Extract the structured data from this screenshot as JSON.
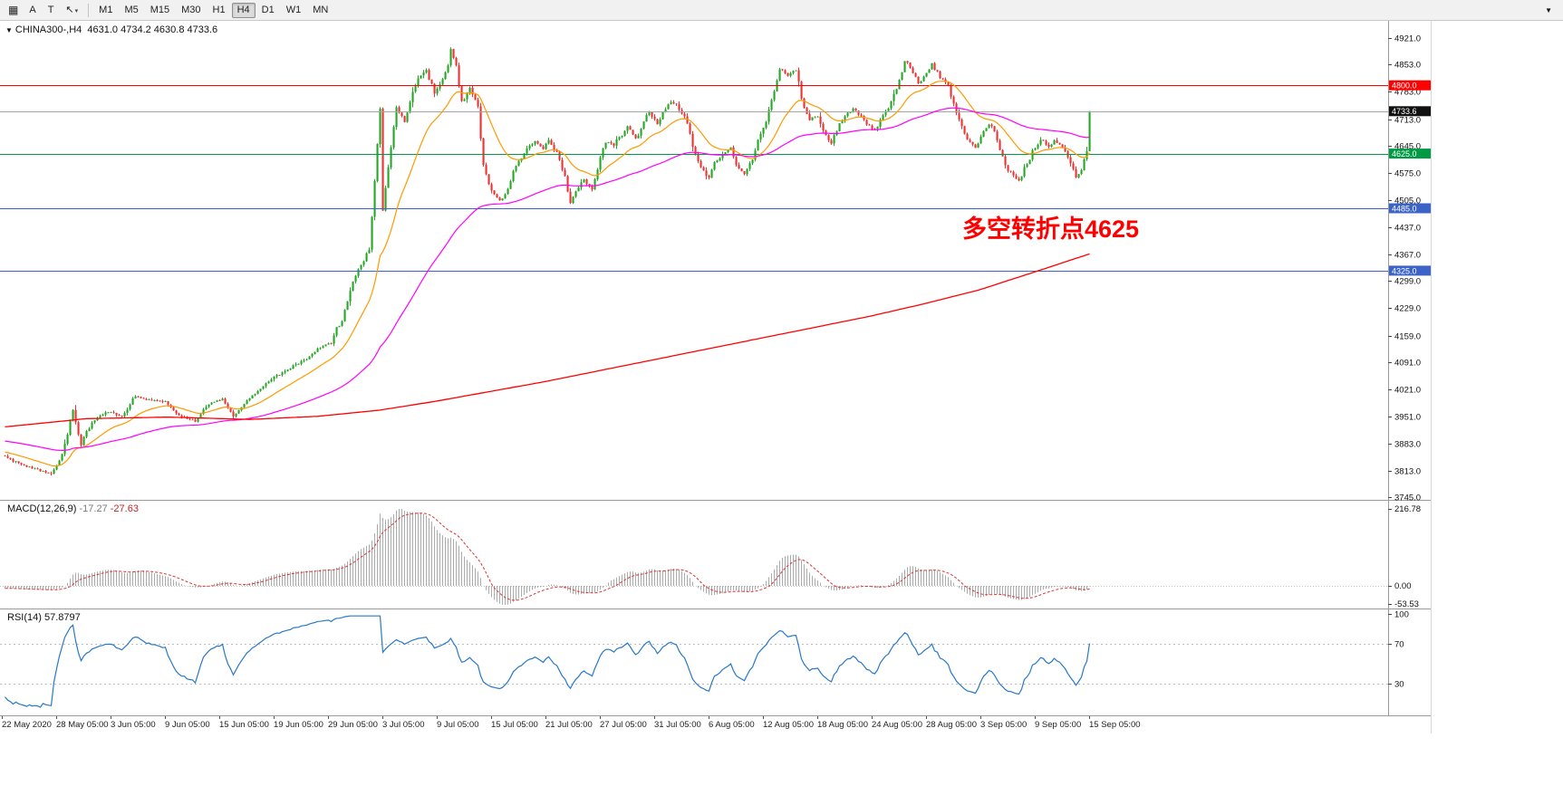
{
  "toolbar": {
    "grid_icon": "▦",
    "tool_a": "A",
    "tool_t": "T",
    "cursor_icon": "↖",
    "cursor_caret": "▾",
    "overflow_icon": "▼",
    "timeframes": [
      {
        "label": "M1",
        "active": false
      },
      {
        "label": "M5",
        "active": false
      },
      {
        "label": "M15",
        "active": false
      },
      {
        "label": "M30",
        "active": false
      },
      {
        "label": "H1",
        "active": false
      },
      {
        "label": "H4",
        "active": true
      },
      {
        "label": "D1",
        "active": false
      },
      {
        "label": "W1",
        "active": false
      },
      {
        "label": "MN",
        "active": false
      }
    ]
  },
  "chart": {
    "header_marker": "▼",
    "symbol_text": "CHINA300-,H4",
    "ohlc_text": "4631.0 4734.2 4630.8 4733.6",
    "macd_label": "MACD(12,26,9)",
    "macd_value_main": "-17.27",
    "macd_value_signal": "-27.63",
    "rsi_label": "RSI(14)",
    "rsi_value": "57.8797",
    "annotation_text": "多空转折点4625",
    "annotation_color": "#FF0000"
  },
  "chart_data": {
    "type": "candlestick",
    "symbol": "CHINA300-",
    "timeframe": "H4",
    "ohlc": {
      "open": 4631.0,
      "high": 4734.2,
      "low": 4630.8,
      "close": 4733.6
    },
    "y_range": [
      3745.0,
      4921.0
    ],
    "bars_visible": 400,
    "candle_colors": {
      "bull": "#26A626",
      "bear": "#EC3232"
    },
    "y_ticks": [
      "4921.0",
      "4853.0",
      "4783.0",
      "4713.0",
      "4645.0",
      "4575.0",
      "4505.0",
      "4437.0",
      "4367.0",
      "4299.0",
      "4229.0",
      "4159.0",
      "4091.0",
      "4021.0",
      "3951.0",
      "3883.0",
      "3813.0",
      "3745.0"
    ],
    "x_labels": [
      "22 May 2020",
      "28 May 05:00",
      "3 Jun 05:00",
      "9 Jun 05:00",
      "15 Jun 05:00",
      "19 Jun 05:00",
      "29 Jun 05:00",
      "3 Jul 05:00",
      "9 Jul 05:00",
      "15 Jul 05:00",
      "21 Jul 05:00",
      "27 Jul 05:00",
      "31 Jul 05:00",
      "6 Aug 05:00",
      "12 Aug 05:00",
      "18 Aug 05:00",
      "24 Aug 05:00",
      "28 Aug 05:00",
      "3 Sep 05:00",
      "9 Sep 05:00",
      "15 Sep 05:00"
    ],
    "levels": [
      {
        "value": 4800.0,
        "color": "#FF0000",
        "kind": "resistance"
      },
      {
        "value": 4733.6,
        "color": "#A6A6A6",
        "kind": "bid"
      },
      {
        "value": 4625.0,
        "color": "#009A44",
        "kind": "pivot"
      },
      {
        "value": 4485.0,
        "color": "#3C64C8",
        "kind": "support"
      },
      {
        "value": 4325.0,
        "color": "#3C64C8",
        "kind": "support"
      }
    ],
    "price_tags": [
      {
        "text": "4800.0",
        "value": 4800.0,
        "bg": "#FF0000"
      },
      {
        "text": "4733.6",
        "value": 4733.6,
        "bg": "#111111"
      },
      {
        "text": "4625.0",
        "value": 4625.0,
        "bg": "#009A44"
      },
      {
        "text": "4485.0",
        "value": 4485.0,
        "bg": "#3C64C8"
      },
      {
        "text": "4325.0",
        "value": 4325.0,
        "bg": "#3C64C8"
      }
    ],
    "close_anchors": [
      [
        0,
        3850
      ],
      [
        8,
        3822
      ],
      [
        17,
        3805
      ],
      [
        21,
        3845
      ],
      [
        25,
        3965
      ],
      [
        28,
        3885
      ],
      [
        32,
        3940
      ],
      [
        38,
        3962
      ],
      [
        43,
        3948
      ],
      [
        48,
        3998
      ],
      [
        54,
        3992
      ],
      [
        59,
        3988
      ],
      [
        64,
        3958
      ],
      [
        70,
        3938
      ],
      [
        75,
        3980
      ],
      [
        80,
        3996
      ],
      [
        84,
        3948
      ],
      [
        88,
        3986
      ],
      [
        94,
        4022
      ],
      [
        99,
        4052
      ],
      [
        104,
        4068
      ],
      [
        110,
        4096
      ],
      [
        115,
        4126
      ],
      [
        120,
        4142
      ],
      [
        124,
        4200
      ],
      [
        128,
        4300
      ],
      [
        131,
        4340
      ],
      [
        134,
        4385
      ],
      [
        135,
        4470
      ],
      [
        138,
        4745
      ],
      [
        139,
        4480
      ],
      [
        142,
        4650
      ],
      [
        144,
        4750
      ],
      [
        147,
        4705
      ],
      [
        150,
        4780
      ],
      [
        152,
        4820
      ],
      [
        155,
        4840
      ],
      [
        158,
        4785
      ],
      [
        160,
        4800
      ],
      [
        163,
        4845
      ],
      [
        164,
        4895
      ],
      [
        166,
        4850
      ],
      [
        168,
        4755
      ],
      [
        171,
        4800
      ],
      [
        174,
        4750
      ],
      [
        176,
        4600
      ],
      [
        179,
        4525
      ],
      [
        182,
        4505
      ],
      [
        184,
        4525
      ],
      [
        187,
        4580
      ],
      [
        190,
        4620
      ],
      [
        192,
        4645
      ],
      [
        195,
        4660
      ],
      [
        198,
        4640
      ],
      [
        200,
        4660
      ],
      [
        203,
        4630
      ],
      [
        206,
        4560
      ],
      [
        208,
        4500
      ],
      [
        211,
        4540
      ],
      [
        213,
        4560
      ],
      [
        216,
        4535
      ],
      [
        219,
        4620
      ],
      [
        221,
        4650
      ],
      [
        224,
        4645
      ],
      [
        227,
        4680
      ],
      [
        229,
        4700
      ],
      [
        232,
        4665
      ],
      [
        235,
        4700
      ],
      [
        237,
        4725
      ],
      [
        240,
        4700
      ],
      [
        243,
        4745
      ],
      [
        245,
        4760
      ],
      [
        248,
        4740
      ],
      [
        251,
        4700
      ],
      [
        253,
        4645
      ],
      [
        256,
        4590
      ],
      [
        259,
        4565
      ],
      [
        261,
        4600
      ],
      [
        264,
        4620
      ],
      [
        267,
        4640
      ],
      [
        269,
        4600
      ],
      [
        272,
        4575
      ],
      [
        275,
        4610
      ],
      [
        277,
        4655
      ],
      [
        280,
        4705
      ],
      [
        283,
        4780
      ],
      [
        285,
        4845
      ],
      [
        288,
        4825
      ],
      [
        291,
        4840
      ],
      [
        293,
        4765
      ],
      [
        296,
        4705
      ],
      [
        299,
        4720
      ],
      [
        301,
        4685
      ],
      [
        304,
        4655
      ],
      [
        307,
        4700
      ],
      [
        309,
        4720
      ],
      [
        312,
        4740
      ],
      [
        315,
        4720
      ],
      [
        317,
        4700
      ],
      [
        320,
        4685
      ],
      [
        323,
        4720
      ],
      [
        325,
        4745
      ],
      [
        328,
        4800
      ],
      [
        331,
        4870
      ],
      [
        333,
        4855
      ],
      [
        336,
        4805
      ],
      [
        339,
        4840
      ],
      [
        341,
        4860
      ],
      [
        344,
        4820
      ],
      [
        347,
        4800
      ],
      [
        349,
        4760
      ],
      [
        352,
        4700
      ],
      [
        354,
        4655
      ],
      [
        357,
        4635
      ],
      [
        360,
        4680
      ],
      [
        362,
        4700
      ],
      [
        365,
        4660
      ],
      [
        368,
        4600
      ],
      [
        370,
        4580
      ],
      [
        373,
        4560
      ],
      [
        376,
        4600
      ],
      [
        378,
        4630
      ],
      [
        381,
        4660
      ],
      [
        384,
        4640
      ],
      [
        386,
        4660
      ],
      [
        389,
        4640
      ],
      [
        392,
        4600
      ],
      [
        394,
        4570
      ],
      [
        396,
        4585
      ],
      [
        398,
        4631
      ],
      [
        399,
        4733.6
      ]
    ],
    "prehistory_anchors": [
      [
        -260,
        4040
      ],
      [
        -230,
        3960
      ],
      [
        -200,
        4000
      ],
      [
        -170,
        3920
      ],
      [
        -140,
        3980
      ],
      [
        -110,
        3900
      ],
      [
        -85,
        3945
      ],
      [
        -60,
        3885
      ],
      [
        -35,
        3905
      ],
      [
        -15,
        3862
      ],
      [
        -1,
        3852
      ]
    ],
    "moving_averages": [
      {
        "name": "fast",
        "color": "#FF9900",
        "type": "ema",
        "period": 21
      },
      {
        "name": "medium",
        "color": "#FF00FF",
        "type": "ema",
        "period": 90
      },
      {
        "name": "slow",
        "color": "#FF0000",
        "type": "anchors"
      }
    ],
    "slow_ma_points": [
      [
        0,
        3925
      ],
      [
        30,
        3946
      ],
      [
        60,
        3950
      ],
      [
        90,
        3944
      ],
      [
        115,
        3952
      ],
      [
        138,
        3968
      ],
      [
        158,
        3990
      ],
      [
        178,
        4015
      ],
      [
        198,
        4040
      ],
      [
        218,
        4068
      ],
      [
        238,
        4096
      ],
      [
        258,
        4124
      ],
      [
        278,
        4152
      ],
      [
        298,
        4180
      ],
      [
        318,
        4208
      ],
      [
        338,
        4240
      ],
      [
        358,
        4275
      ],
      [
        378,
        4320
      ],
      [
        399,
        4368
      ]
    ],
    "macd": {
      "label": "MACD(12,26,9)",
      "params": [
        12,
        26,
        9
      ],
      "current_main": -17.27,
      "current_signal": -27.63,
      "axis_max": 216.78,
      "axis_min": -53.53,
      "axis_ticks": [
        "216.78",
        "0.00",
        "-53.53"
      ],
      "histogram_color": "#ABABAB",
      "signal_color": "#E03030"
    },
    "rsi": {
      "label": "RSI(14)",
      "period": 14,
      "current": 57.8797,
      "axis_ticks": [
        "100",
        "70",
        "30"
      ],
      "levels": [
        70,
        30
      ],
      "line_color": "#2878C8"
    }
  }
}
